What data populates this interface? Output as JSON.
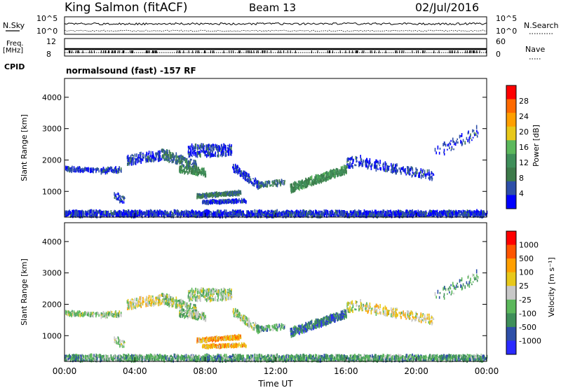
{
  "header": {
    "station": "King Salmon (fitACF)",
    "beam": "Beam 13",
    "date": "02/Jul/2016"
  },
  "top_panels": {
    "nsky_label": "N.Sky",
    "nsearch_label": "N.Search",
    "nsky_top_tick": "10^5",
    "nsky_bottom_tick": "10^0",
    "nsearch_top_tick": "10^5",
    "nsearch_bottom_tick": "10^0",
    "freq_label_line1": "Freq.",
    "freq_label_line2": "[MHz]",
    "freq_ticks": [
      "12",
      "8"
    ],
    "nave_label": "Nave",
    "nave_ticks": [
      "60",
      "0"
    ],
    "cpid_label": "CPID",
    "cpid_text": "normalsound (fast) -157 RF"
  },
  "colors": {
    "power_scale": [
      "#0000ff",
      "#2e4fa8",
      "#3d7a4a",
      "#3f8f5a",
      "#5cb85c",
      "#e8c81a",
      "#ff9f00",
      "#ff6a00",
      "#ff0000"
    ],
    "velocity_scale": [
      "#2a2aff",
      "#2e4fa8",
      "#3f8f5a",
      "#5cb85c",
      "#c8c8c8",
      "#e8c81a",
      "#ff9f00",
      "#ff5500",
      "#ff0000"
    ]
  },
  "chart_data": [
    {
      "type": "heatmap",
      "panel": "power",
      "xlabel": "",
      "ylabel": "Slant Range [km]",
      "xlim": [
        0,
        24
      ],
      "ylim": [
        180,
        4600
      ],
      "y_ticks": [
        "1000",
        "2000",
        "3000",
        "4000"
      ],
      "colorbar_label": "Power [dB]",
      "colorbar_ticks": [
        "4",
        "8",
        "12",
        "16",
        "20",
        "24",
        "28"
      ]
    },
    {
      "type": "heatmap",
      "panel": "velocity",
      "xlabel": "Time UT",
      "ylabel": "Slant Range [km]",
      "xlim": [
        0,
        24
      ],
      "ylim": [
        180,
        4600
      ],
      "x_ticks": [
        "00:00",
        "04:00",
        "08:00",
        "12:00",
        "16:00",
        "20:00",
        "00:00"
      ],
      "y_ticks": [
        "1000",
        "2000",
        "3000",
        "4000"
      ],
      "colorbar_label": "Velocity [m s⁻¹]",
      "colorbar_ticks": [
        "1000",
        "500",
        "100",
        "25",
        "-25",
        "-100",
        "-500",
        "-1000"
      ]
    }
  ]
}
